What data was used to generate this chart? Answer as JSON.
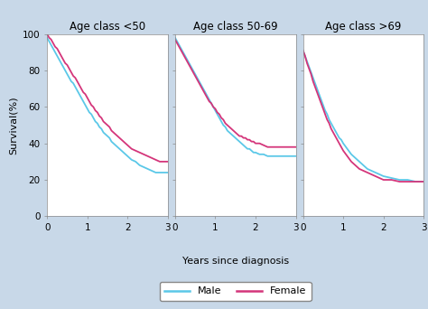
{
  "panels": [
    {
      "title": "Age class <50",
      "male_x": [
        0,
        0.05,
        0.1,
        0.15,
        0.2,
        0.25,
        0.3,
        0.35,
        0.4,
        0.45,
        0.5,
        0.55,
        0.6,
        0.65,
        0.7,
        0.75,
        0.8,
        0.85,
        0.9,
        0.95,
        1.0,
        1.05,
        1.1,
        1.15,
        1.2,
        1.25,
        1.3,
        1.35,
        1.4,
        1.45,
        1.5,
        1.55,
        1.6,
        1.65,
        1.7,
        1.75,
        1.8,
        1.85,
        1.9,
        1.95,
        2.0,
        2.1,
        2.2,
        2.3,
        2.4,
        2.5,
        2.6,
        2.7,
        2.8,
        2.9,
        3.0
      ],
      "male_y": [
        98,
        96,
        94,
        92,
        90,
        88,
        86,
        84,
        82,
        80,
        78,
        76,
        74,
        73,
        71,
        69,
        67,
        65,
        63,
        61,
        59,
        57,
        56,
        54,
        52,
        51,
        49,
        48,
        46,
        45,
        44,
        43,
        41,
        40,
        39,
        38,
        37,
        36,
        35,
        34,
        33,
        31,
        30,
        28,
        27,
        26,
        25,
        24,
        24,
        24,
        24
      ],
      "female_x": [
        0,
        0.05,
        0.1,
        0.15,
        0.2,
        0.25,
        0.3,
        0.35,
        0.4,
        0.45,
        0.5,
        0.55,
        0.6,
        0.65,
        0.7,
        0.75,
        0.8,
        0.85,
        0.9,
        0.95,
        1.0,
        1.05,
        1.1,
        1.15,
        1.2,
        1.25,
        1.3,
        1.35,
        1.4,
        1.45,
        1.5,
        1.55,
        1.6,
        1.65,
        1.7,
        1.75,
        1.8,
        1.85,
        1.9,
        1.95,
        2.0,
        2.1,
        2.2,
        2.3,
        2.4,
        2.5,
        2.6,
        2.7,
        2.8,
        2.9,
        3.0
      ],
      "female_y": [
        100,
        98,
        97,
        95,
        93,
        92,
        90,
        88,
        86,
        84,
        83,
        81,
        79,
        77,
        76,
        74,
        72,
        70,
        68,
        67,
        65,
        63,
        61,
        60,
        58,
        57,
        55,
        54,
        52,
        51,
        50,
        49,
        47,
        46,
        45,
        44,
        43,
        42,
        41,
        40,
        39,
        37,
        36,
        35,
        34,
        33,
        32,
        31,
        30,
        30,
        30
      ]
    },
    {
      "title": "Age class 50-69",
      "male_x": [
        0,
        0.05,
        0.1,
        0.15,
        0.2,
        0.25,
        0.3,
        0.35,
        0.4,
        0.45,
        0.5,
        0.55,
        0.6,
        0.65,
        0.7,
        0.75,
        0.8,
        0.85,
        0.9,
        0.95,
        1.0,
        1.05,
        1.1,
        1.15,
        1.2,
        1.25,
        1.3,
        1.35,
        1.4,
        1.45,
        1.5,
        1.55,
        1.6,
        1.65,
        1.7,
        1.75,
        1.8,
        1.85,
        1.9,
        1.95,
        2.0,
        2.1,
        2.2,
        2.3,
        2.4,
        2.5,
        2.6,
        2.7,
        2.8,
        2.9,
        3.0
      ],
      "male_y": [
        98,
        96,
        94,
        92,
        90,
        88,
        86,
        84,
        82,
        80,
        78,
        76,
        74,
        72,
        70,
        68,
        66,
        64,
        62,
        60,
        58,
        56,
        54,
        52,
        50,
        49,
        47,
        46,
        45,
        44,
        43,
        42,
        41,
        40,
        39,
        38,
        37,
        37,
        36,
        35,
        35,
        34,
        34,
        33,
        33,
        33,
        33,
        33,
        33,
        33,
        33
      ],
      "female_x": [
        0,
        0.05,
        0.1,
        0.15,
        0.2,
        0.25,
        0.3,
        0.35,
        0.4,
        0.45,
        0.5,
        0.55,
        0.6,
        0.65,
        0.7,
        0.75,
        0.8,
        0.85,
        0.9,
        0.95,
        1.0,
        1.05,
        1.1,
        1.15,
        1.2,
        1.25,
        1.3,
        1.35,
        1.4,
        1.45,
        1.5,
        1.55,
        1.6,
        1.65,
        1.7,
        1.75,
        1.8,
        1.85,
        1.9,
        1.95,
        2.0,
        2.1,
        2.2,
        2.3,
        2.4,
        2.5,
        2.6,
        2.7,
        2.8,
        2.9,
        3.0
      ],
      "female_y": [
        97,
        95,
        93,
        91,
        89,
        87,
        85,
        83,
        81,
        79,
        77,
        75,
        73,
        71,
        69,
        67,
        65,
        63,
        62,
        60,
        59,
        57,
        56,
        54,
        53,
        51,
        50,
        49,
        48,
        47,
        46,
        45,
        44,
        44,
        43,
        43,
        42,
        42,
        41,
        41,
        40,
        40,
        39,
        38,
        38,
        38,
        38,
        38,
        38,
        38,
        38
      ]
    },
    {
      "title": "Age class >69",
      "male_x": [
        0,
        0.05,
        0.1,
        0.15,
        0.2,
        0.25,
        0.3,
        0.35,
        0.4,
        0.45,
        0.5,
        0.55,
        0.6,
        0.65,
        0.7,
        0.75,
        0.8,
        0.85,
        0.9,
        0.95,
        1.0,
        1.1,
        1.2,
        1.3,
        1.4,
        1.5,
        1.6,
        1.7,
        1.8,
        1.9,
        2.0,
        2.2,
        2.4,
        2.6,
        2.8,
        3.0
      ],
      "male_y": [
        91,
        88,
        85,
        82,
        79,
        76,
        73,
        70,
        67,
        64,
        61,
        58,
        56,
        53,
        51,
        49,
        47,
        45,
        43,
        42,
        40,
        37,
        34,
        32,
        30,
        28,
        26,
        25,
        24,
        23,
        22,
        21,
        20,
        20,
        19,
        19
      ],
      "female_x": [
        0,
        0.05,
        0.1,
        0.15,
        0.2,
        0.25,
        0.3,
        0.35,
        0.4,
        0.45,
        0.5,
        0.55,
        0.6,
        0.65,
        0.7,
        0.75,
        0.8,
        0.85,
        0.9,
        0.95,
        1.0,
        1.1,
        1.2,
        1.3,
        1.4,
        1.5,
        1.6,
        1.7,
        1.8,
        1.9,
        2.0,
        2.2,
        2.4,
        2.6,
        2.8,
        3.0
      ],
      "female_y": [
        91,
        88,
        84,
        81,
        78,
        74,
        71,
        68,
        65,
        62,
        59,
        56,
        53,
        51,
        48,
        46,
        44,
        42,
        40,
        38,
        36,
        33,
        30,
        28,
        26,
        25,
        24,
        23,
        22,
        21,
        20,
        20,
        19,
        19,
        19,
        19
      ]
    }
  ],
  "male_color": "#5bc8e8",
  "female_color": "#d4357a",
  "outer_background": "#c8d8e8",
  "plot_background": "#ffffff",
  "ylabel": "Survival(%)",
  "xlabel": "Years since diagnosis",
  "ylim": [
    0,
    100
  ],
  "xlim": [
    0,
    3
  ],
  "yticks": [
    0,
    20,
    40,
    60,
    80,
    100
  ],
  "xticks": [
    0,
    1,
    2,
    3
  ],
  "title_fontsize": 8.5,
  "label_fontsize": 8,
  "tick_fontsize": 7.5,
  "legend_labels": [
    "Male",
    "Female"
  ]
}
